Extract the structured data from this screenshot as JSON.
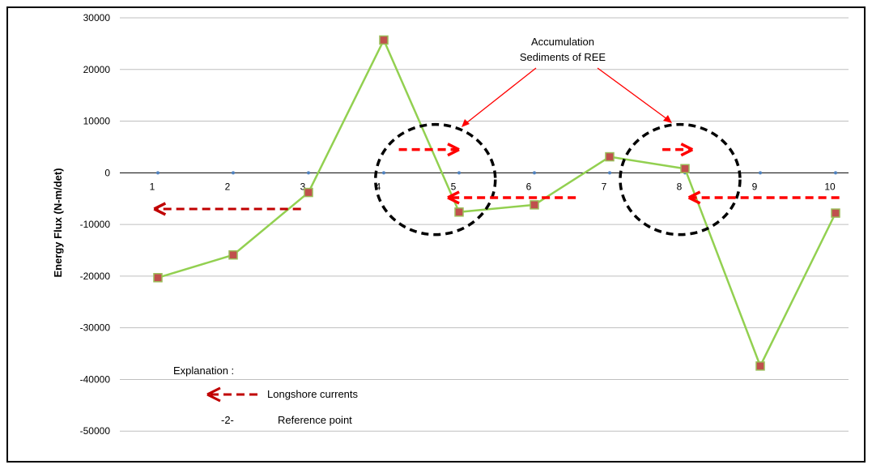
{
  "chart_data": {
    "type": "line",
    "title": "",
    "xlabel": "",
    "ylabel": "Energy Flux (N-m/det)",
    "ylim": [
      -60000,
      30000
    ],
    "y_ticks": [
      30000,
      20000,
      10000,
      0,
      -10000,
      -20000,
      -30000,
      -40000,
      -50000
    ],
    "y_tick_labels": [
      "30000",
      "20000",
      "10000",
      "0",
      "-10000",
      "-20000",
      "-30000",
      "-40000",
      "-50000"
    ],
    "x": [
      1,
      2,
      3,
      4,
      5,
      6,
      7,
      8,
      9,
      10
    ],
    "x_tick_labels": [
      "1",
      "2",
      "3",
      "4",
      "5",
      "6",
      "7",
      "8",
      "9",
      "10"
    ],
    "grid": true,
    "series": [
      {
        "values": [
          -20300,
          -15900,
          -3800,
          25700,
          -7600,
          -6200,
          3100,
          800,
          -37400,
          -7800
        ],
        "line_color": "#92d050",
        "marker_color": "#c0504d"
      },
      {
        "values": [
          0,
          0,
          0,
          0,
          0,
          0,
          0,
          0,
          0,
          0
        ],
        "marker_color": "#4f81bd"
      }
    ],
    "annotations": {
      "accumulation_line1": "Accumulation",
      "accumulation_line2": "Sediments of REE",
      "accumulation_circles_at": [
        4.75,
        8
      ],
      "currents": [
        {
          "from": 2.9,
          "to": 0.95,
          "y": -7000
        },
        {
          "from": 4.2,
          "to": 5.0,
          "y": 4500
        },
        {
          "from": 6.55,
          "to": 4.85,
          "y": -4800
        },
        {
          "from": 7.7,
          "to": 8.1,
          "y": 4500
        },
        {
          "from": 10.05,
          "to": 8.05,
          "y": -4800
        }
      ]
    },
    "legend": {
      "explanation": "Explanation  :",
      "currents_label": "Longshore currents",
      "ref_symbol": "-2-",
      "ref_label": "Reference point"
    }
  }
}
